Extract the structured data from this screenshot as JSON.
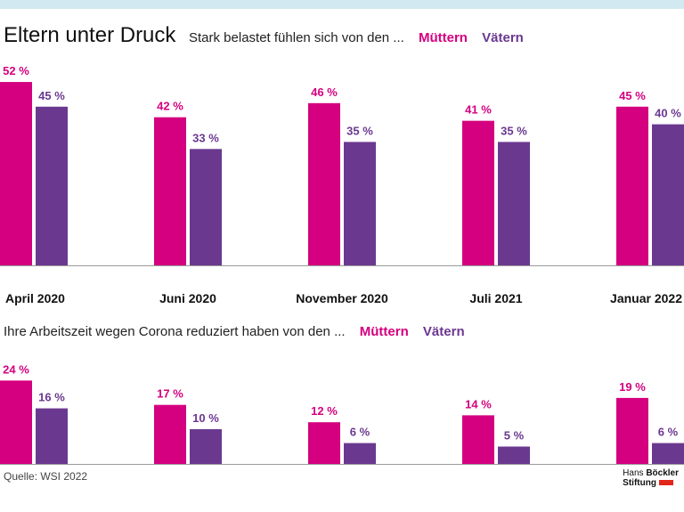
{
  "title": "Eltern unter Druck",
  "legend": {
    "muetter": "Müttern",
    "vaeter": "Vätern"
  },
  "colors": {
    "muetter": "#d4007f",
    "vaeter": "#6b3890",
    "topbar": "#d3e9f2"
  },
  "source": "Quelle: WSI 2022",
  "logo": {
    "line1": "Hans",
    "line1b": "Böckler",
    "line2": "Stiftung"
  },
  "chart_data": [
    {
      "type": "bar",
      "title": "Stark belastet fühlen sich von den ...",
      "categories": [
        "April 2020",
        "Juni 2020",
        "November 2020",
        "Juli 2021",
        "Januar 2022"
      ],
      "unit": "%",
      "ylim": [
        0,
        60
      ],
      "series": [
        {
          "name": "Müttern",
          "values": [
            52,
            42,
            46,
            41,
            45
          ]
        },
        {
          "name": "Vätern",
          "values": [
            45,
            33,
            35,
            35,
            40
          ]
        }
      ]
    },
    {
      "type": "bar",
      "title": "Ihre Arbeitszeit wegen Corona reduziert haben von den ...",
      "categories": [
        "April 2020",
        "Juni 2020",
        "November 2020",
        "Juli 2021",
        "Januar 2022"
      ],
      "unit": "%",
      "ylim": [
        0,
        28
      ],
      "series": [
        {
          "name": "Müttern",
          "values": [
            24,
            17,
            12,
            14,
            19
          ]
        },
        {
          "name": "Vätern",
          "values": [
            16,
            10,
            6,
            5,
            6
          ]
        }
      ]
    }
  ]
}
